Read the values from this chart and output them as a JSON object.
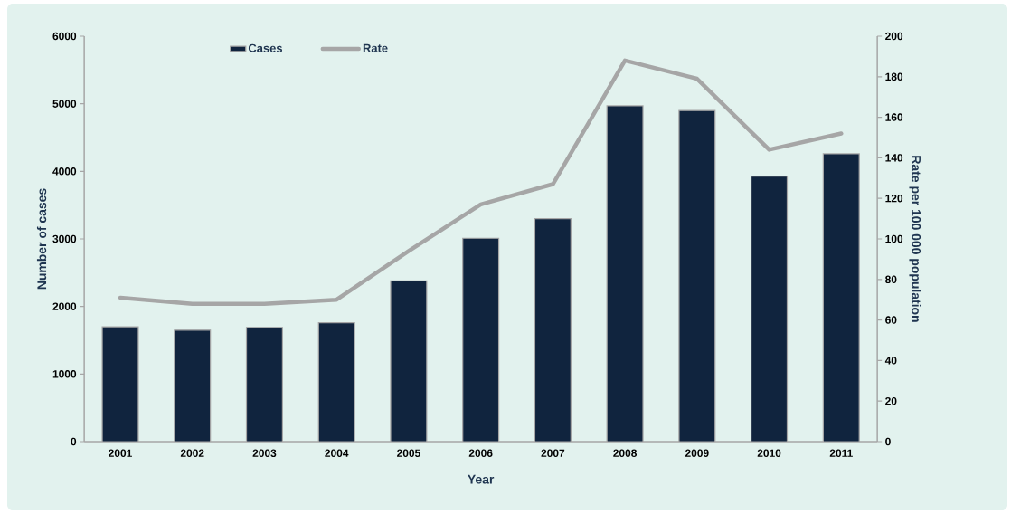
{
  "chart_data": {
    "type": "bar",
    "xlabel": "Year",
    "ylabel": "Number of cases",
    "y2label": "Rate per 100 000 population",
    "categories": [
      "2001",
      "2002",
      "2003",
      "2004",
      "2005",
      "2006",
      "2007",
      "2008",
      "2009",
      "2010",
      "2011"
    ],
    "ylim": [
      0,
      6000
    ],
    "yticks": [
      0,
      1000,
      2000,
      3000,
      4000,
      5000,
      6000
    ],
    "y2lim": [
      0,
      200
    ],
    "y2ticks": [
      0,
      20,
      40,
      60,
      80,
      100,
      120,
      140,
      160,
      180,
      200
    ],
    "legend": "top left",
    "grid": false,
    "series": [
      {
        "name": "Cases",
        "color": "#10243e",
        "values": [
          1700,
          1650,
          1690,
          1760,
          2380,
          3010,
          3300,
          4970,
          4900,
          3930,
          4260
        ]
      },
      {
        "name": "Rate",
        "type": "line",
        "axis": "y2",
        "color": "#a6a6a6",
        "values": [
          71,
          68,
          68,
          70,
          94,
          117,
          127,
          188,
          179,
          144,
          152
        ]
      }
    ]
  }
}
